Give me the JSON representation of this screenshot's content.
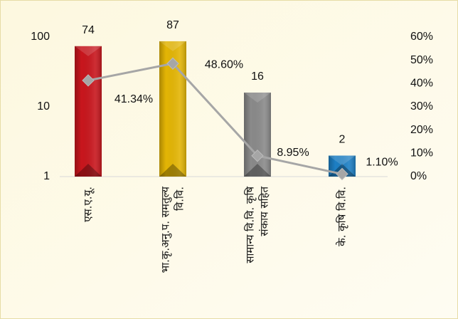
{
  "chart_data": {
    "type": "bar-line",
    "categories": [
      [
        "एस.ए.यू."
      ],
      [
        "भा.कृ.अनु.प. समतुल्य",
        "वि.वि."
      ],
      [
        "सामान्य वि.वि. कृषि",
        "संकाय सहित"
      ],
      [
        "के. कृषि वि.वि."
      ]
    ],
    "bars": {
      "values": [
        74,
        87,
        16,
        2
      ],
      "colors": [
        "#c8161d",
        "#e3b505",
        "#8a8a8a",
        "#1d7fc4"
      ]
    },
    "line": {
      "values": [
        41.34,
        48.6,
        8.95,
        1.1
      ],
      "value_labels": [
        "41.34%",
        "48.60%",
        "8.95%",
        "1.10%"
      ],
      "color": "#a6a6a6",
      "axis": "y2"
    },
    "ylim": [
      1,
      100
    ],
    "yticks": [
      1,
      10,
      100
    ],
    "log_scale": true,
    "y2lim": [
      0,
      60
    ],
    "y2ticks": [
      {
        "value": 0,
        "label": "0%"
      },
      {
        "value": 10,
        "label": "10%"
      },
      {
        "value": 20,
        "label": "20%"
      },
      {
        "value": 30,
        "label": "30%"
      },
      {
        "value": 40,
        "label": "40%"
      },
      {
        "value": 50,
        "label": "50%"
      },
      {
        "value": 60,
        "label": "60%"
      }
    ],
    "grid": false
  }
}
